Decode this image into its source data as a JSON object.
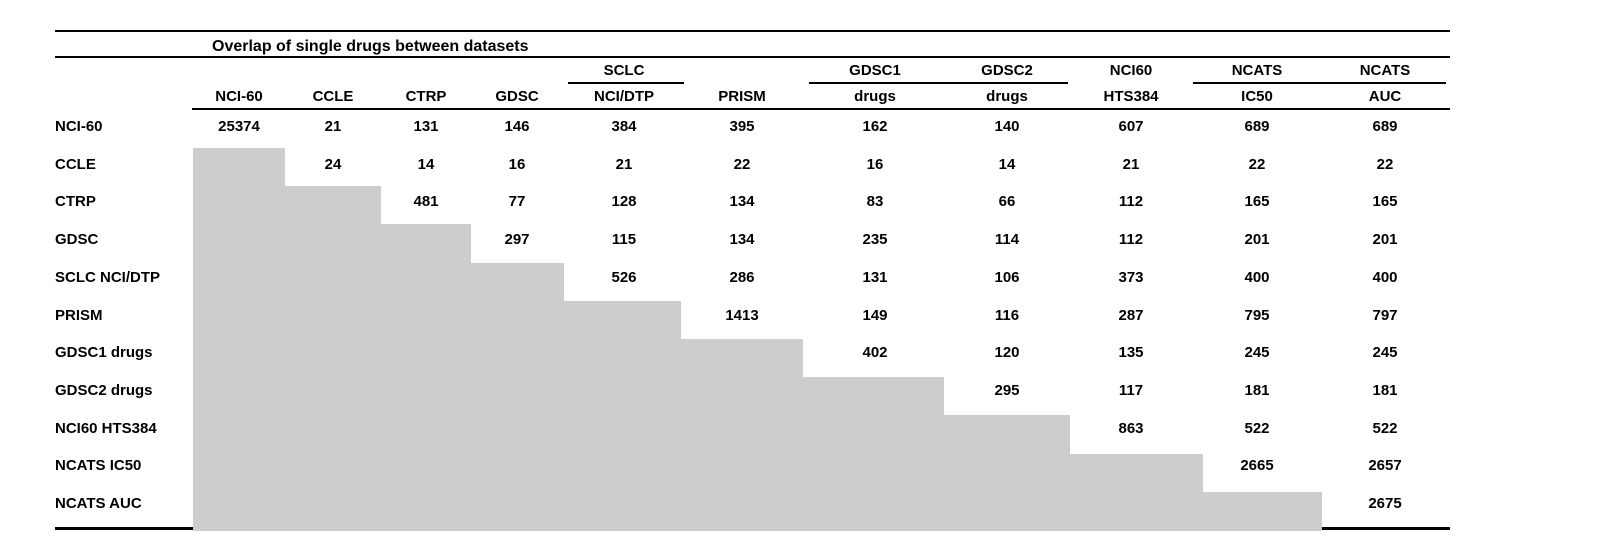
{
  "title": "Overlap of single drugs between datasets",
  "colors": {
    "shaded_cell": "#cdcdcd",
    "text": "#000000",
    "rule": "#000000",
    "background": "#ffffff"
  },
  "table": {
    "column_headers": [
      {
        "line1": "",
        "line2": "NCI-60"
      },
      {
        "line1": "",
        "line2": "CCLE"
      },
      {
        "line1": "",
        "line2": "CTRP"
      },
      {
        "line1": "",
        "line2": "GDSC"
      },
      {
        "line1": "SCLC",
        "line2": "NCI/DTP"
      },
      {
        "line1": "",
        "line2": "PRISM"
      },
      {
        "line1": "GDSC1",
        "line2": "drugs"
      },
      {
        "line1": "GDSC2",
        "line2": "drugs"
      },
      {
        "line1": "NCI60",
        "line2": "HTS384"
      },
      {
        "line1": "NCATS",
        "line2": "IC50"
      },
      {
        "line1": "NCATS",
        "line2": "AUC"
      }
    ],
    "rows": [
      {
        "label": "NCI-60",
        "values": [
          "25374",
          "21",
          "131",
          "146",
          "384",
          "395",
          "162",
          "140",
          "607",
          "689",
          "689"
        ]
      },
      {
        "label": "CCLE",
        "values": [
          null,
          "24",
          "14",
          "16",
          "21",
          "22",
          "16",
          "14",
          "21",
          "22",
          "22"
        ]
      },
      {
        "label": "CTRP",
        "values": [
          null,
          null,
          "481",
          "77",
          "128",
          "134",
          "83",
          "66",
          "112",
          "165",
          "165"
        ]
      },
      {
        "label": "GDSC",
        "values": [
          null,
          null,
          null,
          "297",
          "115",
          "134",
          "235",
          "114",
          "112",
          "201",
          "201"
        ]
      },
      {
        "label": "SCLC NCI/DTP",
        "values": [
          null,
          null,
          null,
          null,
          "526",
          "286",
          "131",
          "106",
          "373",
          "400",
          "400"
        ]
      },
      {
        "label": "PRISM",
        "values": [
          null,
          null,
          null,
          null,
          null,
          "1413",
          "149",
          "116",
          "287",
          "795",
          "797"
        ]
      },
      {
        "label": "GDSC1 drugs",
        "values": [
          null,
          null,
          null,
          null,
          null,
          null,
          "402",
          "120",
          "135",
          "245",
          "245"
        ]
      },
      {
        "label": "GDSC2 drugs",
        "values": [
          null,
          null,
          null,
          null,
          null,
          null,
          null,
          "295",
          "117",
          "181",
          "181"
        ]
      },
      {
        "label": "NCI60 HTS384",
        "values": [
          null,
          null,
          null,
          null,
          null,
          null,
          null,
          null,
          "863",
          "522",
          "522"
        ]
      },
      {
        "label": "NCATS IC50",
        "values": [
          null,
          null,
          null,
          null,
          null,
          null,
          null,
          null,
          null,
          "2665",
          "2657"
        ]
      },
      {
        "label": "NCATS AUC",
        "values": [
          null,
          null,
          null,
          null,
          null,
          null,
          null,
          null,
          null,
          null,
          "2675"
        ]
      }
    ]
  }
}
